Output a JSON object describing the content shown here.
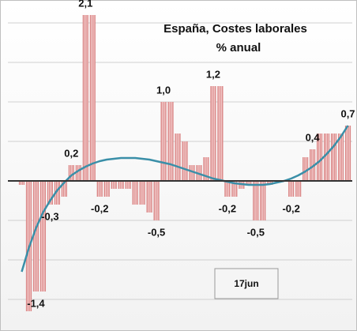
{
  "chart_data": {
    "type": "bar",
    "title": "España, Costes laborales",
    "subtitle": "% anual",
    "annotation": "17jun",
    "categories": [
      null,
      null,
      null,
      null,
      null,
      null,
      null,
      null,
      null,
      null,
      null,
      null,
      null,
      null,
      null,
      null,
      null,
      null,
      null,
      null,
      null,
      null,
      null,
      null,
      null,
      null,
      null,
      null,
      null,
      null,
      null,
      null,
      null,
      null,
      null,
      null,
      null,
      null,
      null,
      null,
      null,
      null,
      null,
      null,
      null,
      null,
      null
    ],
    "series": [
      {
        "type": "bar",
        "color": "#d98484",
        "values": [
          -0.05,
          -1.65,
          -1.4,
          -1.4,
          -0.3,
          -0.3,
          -0.2,
          0.2,
          0.2,
          2.1,
          2.1,
          -0.2,
          -0.2,
          -0.1,
          -0.1,
          -0.1,
          -0.3,
          -0.3,
          -0.4,
          -0.5,
          1.0,
          1.0,
          0.6,
          0.5,
          0.2,
          0.2,
          0.3,
          1.2,
          1.2,
          -0.2,
          -0.2,
          -0.1,
          -0.05,
          -0.5,
          -0.5,
          -0.05,
          0,
          0,
          -0.2,
          -0.2,
          0.3,
          0.4,
          0.6,
          0.6,
          0.6,
          0.6,
          0.7
        ],
        "value_labels": [
          null,
          null,
          "-1,4",
          null,
          "-0,3",
          null,
          null,
          "0,2",
          null,
          "2,1",
          null,
          "-0,2",
          null,
          null,
          null,
          null,
          null,
          null,
          null,
          "-0,5",
          "1,0",
          null,
          null,
          null,
          null,
          null,
          null,
          "1,2",
          null,
          "-0,2",
          null,
          null,
          null,
          "-0,5",
          null,
          null,
          null,
          null,
          "-0,2",
          null,
          null,
          "0,4",
          null,
          null,
          null,
          null,
          "0,7"
        ]
      },
      {
        "type": "line",
        "color": "#3a8fa8",
        "values": [
          -1.15,
          -0.85,
          -0.6,
          -0.4,
          -0.25,
          -0.12,
          -0.02,
          0.07,
          0.13,
          0.18,
          0.22,
          0.25,
          0.27,
          0.28,
          0.29,
          0.29,
          0.29,
          0.28,
          0.27,
          0.25,
          0.23,
          0.21,
          0.18,
          0.15,
          0.12,
          0.09,
          0.06,
          0.03,
          0.01,
          -0.01,
          -0.03,
          -0.04,
          -0.05,
          -0.05,
          -0.05,
          -0.04,
          -0.02,
          0.0,
          0.03,
          0.07,
          0.12,
          0.18,
          0.25,
          0.34,
          0.44,
          0.56,
          0.7
        ]
      }
    ],
    "ylim": [
      -1.7,
      2.25
    ],
    "yticks": [
      -1.5,
      -1,
      -0.5,
      0,
      0.5,
      1,
      1.5,
      2
    ],
    "grid": true
  }
}
